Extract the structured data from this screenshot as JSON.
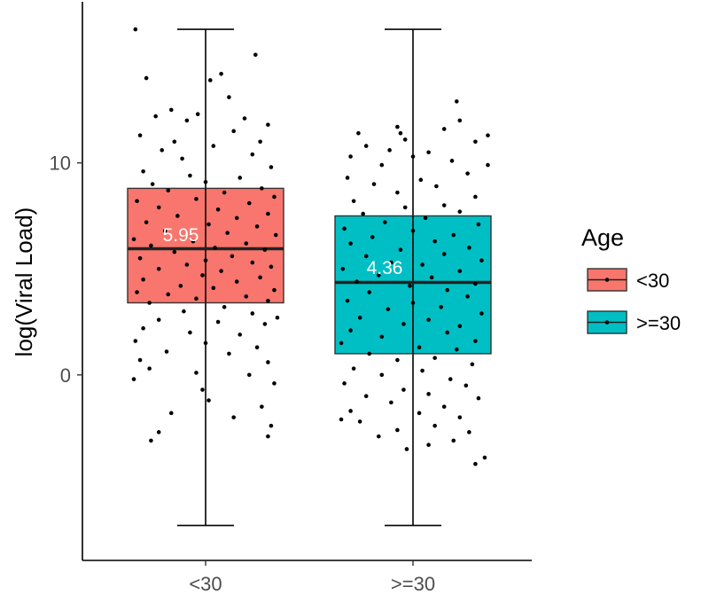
{
  "chart_data": {
    "type": "box",
    "xlabel": "",
    "ylabel": "log(Viral Load)",
    "ylim": [
      -8.75,
      17.6
    ],
    "yticks": [
      0,
      10
    ],
    "categories": [
      "<30",
      ">=30"
    ],
    "boxes": [
      {
        "category": "<30",
        "whisker_low": -7.1,
        "q1": 3.4,
        "median": 5.95,
        "q3": 8.8,
        "whisker_high": 16.3,
        "color": "#f8766d",
        "median_label": "5.95",
        "points": [
          [
            -0.45,
            16.3
          ],
          [
            -0.38,
            14.0
          ],
          [
            0.1,
            14.2
          ],
          [
            0.03,
            13.9
          ],
          [
            0.32,
            15.1
          ],
          [
            -0.22,
            12.5
          ],
          [
            -0.12,
            12.0
          ],
          [
            0.15,
            13.1
          ],
          [
            -0.32,
            12.2
          ],
          [
            -0.05,
            12.3
          ],
          [
            0.25,
            12.1
          ],
          [
            0.4,
            11.8
          ],
          [
            -0.42,
            11.3
          ],
          [
            -0.2,
            11.0
          ],
          [
            0.18,
            11.5
          ],
          [
            0.35,
            11.0
          ],
          [
            -0.28,
            10.6
          ],
          [
            0.05,
            10.8
          ],
          [
            0.3,
            10.4
          ],
          [
            -0.15,
            10.2
          ],
          [
            0.42,
            9.8
          ],
          [
            -0.4,
            9.6
          ],
          [
            -0.1,
            9.4
          ],
          [
            0.22,
            9.3
          ],
          [
            -0.34,
            9.0
          ],
          [
            0.0,
            9.1
          ],
          [
            0.36,
            8.8
          ],
          [
            -0.24,
            8.7
          ],
          [
            0.12,
            8.6
          ],
          [
            0.44,
            8.4
          ],
          [
            -0.44,
            8.2
          ],
          [
            -0.06,
            8.3
          ],
          [
            0.28,
            8.1
          ],
          [
            -0.3,
            7.9
          ],
          [
            0.08,
            7.8
          ],
          [
            0.4,
            7.6
          ],
          [
            -0.18,
            7.5
          ],
          [
            0.2,
            7.4
          ],
          [
            -0.38,
            7.2
          ],
          [
            0.02,
            7.1
          ],
          [
            0.33,
            7.0
          ],
          [
            -0.26,
            6.8
          ],
          [
            0.14,
            6.7
          ],
          [
            0.45,
            6.6
          ],
          [
            -0.46,
            6.4
          ],
          [
            -0.08,
            6.3
          ],
          [
            0.26,
            6.2
          ],
          [
            -0.35,
            6.1
          ],
          [
            0.06,
            6.0
          ],
          [
            0.38,
            5.9
          ],
          [
            -0.2,
            5.8
          ],
          [
            0.17,
            5.6
          ],
          [
            -0.42,
            5.5
          ],
          [
            0.0,
            5.4
          ],
          [
            0.3,
            5.3
          ],
          [
            -0.12,
            5.2
          ],
          [
            0.42,
            5.1
          ],
          [
            -0.3,
            5.0
          ],
          [
            0.1,
            4.9
          ],
          [
            -0.02,
            4.7
          ],
          [
            0.35,
            4.6
          ],
          [
            -0.4,
            4.5
          ],
          [
            0.2,
            4.4
          ],
          [
            -0.16,
            4.2
          ],
          [
            0.05,
            4.1
          ],
          [
            0.44,
            4.0
          ],
          [
            -0.44,
            3.9
          ],
          [
            -0.24,
            3.8
          ],
          [
            0.26,
            3.7
          ],
          [
            -0.06,
            3.6
          ],
          [
            0.4,
            3.5
          ],
          [
            -0.36,
            3.4
          ],
          [
            0.12,
            3.2
          ],
          [
            -0.14,
            3.0
          ],
          [
            0.3,
            2.9
          ],
          [
            0.46,
            2.7
          ],
          [
            -0.3,
            2.6
          ],
          [
            0.08,
            2.5
          ],
          [
            0.38,
            2.4
          ],
          [
            -0.4,
            2.2
          ],
          [
            -0.1,
            2.0
          ],
          [
            0.22,
            1.9
          ],
          [
            -0.45,
            1.6
          ],
          [
            0.0,
            1.5
          ],
          [
            0.33,
            1.3
          ],
          [
            -0.25,
            1.1
          ],
          [
            0.15,
            1.0
          ],
          [
            -0.42,
            0.7
          ],
          [
            0.4,
            0.6
          ],
          [
            -0.36,
            0.3
          ],
          [
            -0.06,
            0.1
          ],
          [
            0.28,
            0.0
          ],
          [
            -0.46,
            -0.2
          ],
          [
            0.44,
            -0.4
          ],
          [
            -0.02,
            -0.7
          ],
          [
            0.02,
            -1.2
          ],
          [
            0.36,
            -1.5
          ],
          [
            -0.22,
            -1.8
          ],
          [
            0.18,
            -2.0
          ],
          [
            0.42,
            -2.4
          ],
          [
            -0.3,
            -2.7
          ],
          [
            0.4,
            -2.9
          ],
          [
            -0.35,
            -3.1
          ]
        ]
      },
      {
        "category": ">=30",
        "whisker_low": -7.1,
        "q1": 1.0,
        "median": 4.36,
        "q3": 7.5,
        "whisker_high": 16.3,
        "color": "#00bfc4",
        "median_label": "4.36",
        "points": [
          [
            0.28,
            12.9
          ],
          [
            0.3,
            12.0
          ],
          [
            -0.1,
            11.7
          ],
          [
            -0.08,
            11.4
          ],
          [
            0.2,
            11.6
          ],
          [
            -0.35,
            11.4
          ],
          [
            0.48,
            11.3
          ],
          [
            -0.05,
            11.1
          ],
          [
            0.4,
            11.0
          ],
          [
            -0.3,
            10.8
          ],
          [
            -0.15,
            10.6
          ],
          [
            0.1,
            10.5
          ],
          [
            -0.4,
            10.3
          ],
          [
            0.0,
            10.3
          ],
          [
            0.25,
            10.1
          ],
          [
            -0.2,
            9.9
          ],
          [
            0.48,
            9.9
          ],
          [
            0.35,
            9.5
          ],
          [
            -0.42,
            9.3
          ],
          [
            0.05,
            9.2
          ],
          [
            -0.25,
            9.0
          ],
          [
            0.15,
            8.9
          ],
          [
            -0.1,
            8.6
          ],
          [
            0.4,
            8.4
          ],
          [
            -0.38,
            8.2
          ],
          [
            0.2,
            8.0
          ],
          [
            -0.05,
            7.9
          ],
          [
            0.3,
            7.7
          ],
          [
            -0.32,
            7.6
          ],
          [
            0.08,
            7.4
          ],
          [
            -0.18,
            7.2
          ],
          [
            0.42,
            7.1
          ],
          [
            -0.44,
            6.9
          ],
          [
            0.0,
            6.8
          ],
          [
            0.26,
            6.6
          ],
          [
            -0.26,
            6.5
          ],
          [
            0.14,
            6.3
          ],
          [
            -0.4,
            6.2
          ],
          [
            0.36,
            6.0
          ],
          [
            -0.08,
            5.9
          ],
          [
            0.2,
            5.7
          ],
          [
            -0.3,
            5.6
          ],
          [
            0.44,
            5.4
          ],
          [
            -0.14,
            5.3
          ],
          [
            0.06,
            5.2
          ],
          [
            -0.45,
            5.0
          ],
          [
            0.3,
            4.9
          ],
          [
            -0.22,
            4.7
          ],
          [
            0.12,
            4.6
          ],
          [
            -0.36,
            4.4
          ],
          [
            0.4,
            4.3
          ],
          [
            -0.02,
            4.2
          ],
          [
            0.22,
            4.0
          ],
          [
            -0.28,
            3.9
          ],
          [
            0.35,
            3.7
          ],
          [
            -0.42,
            3.5
          ],
          [
            0.0,
            3.4
          ],
          [
            0.18,
            3.2
          ],
          [
            -0.16,
            3.1
          ],
          [
            0.44,
            2.9
          ],
          [
            -0.34,
            2.7
          ],
          [
            0.1,
            2.6
          ],
          [
            -0.06,
            2.4
          ],
          [
            0.3,
            2.3
          ],
          [
            -0.4,
            2.1
          ],
          [
            0.22,
            2.0
          ],
          [
            -0.2,
            1.8
          ],
          [
            0.4,
            1.6
          ],
          [
            -0.46,
            1.5
          ],
          [
            0.04,
            1.3
          ],
          [
            0.28,
            1.2
          ],
          [
            -0.28,
            1.0
          ],
          [
            0.14,
            0.8
          ],
          [
            -0.1,
            0.7
          ],
          [
            0.38,
            0.5
          ],
          [
            -0.38,
            0.3
          ],
          [
            0.06,
            0.2
          ],
          [
            -0.2,
            0.0
          ],
          [
            0.24,
            -0.2
          ],
          [
            -0.44,
            -0.4
          ],
          [
            0.34,
            -0.5
          ],
          [
            -0.06,
            -0.7
          ],
          [
            0.1,
            -0.9
          ],
          [
            -0.3,
            -1.0
          ],
          [
            0.42,
            -1.1
          ],
          [
            -0.14,
            -1.3
          ],
          [
            0.2,
            -1.5
          ],
          [
            -0.4,
            -1.7
          ],
          [
            0.04,
            -1.8
          ],
          [
            0.3,
            -2.0
          ],
          [
            -0.46,
            -2.1
          ],
          [
            -0.34,
            -2.2
          ],
          [
            0.14,
            -2.4
          ],
          [
            -0.1,
            -2.6
          ],
          [
            0.36,
            -2.7
          ],
          [
            -0.22,
            -2.9
          ],
          [
            0.26,
            -3.1
          ],
          [
            0.1,
            -3.3
          ],
          [
            -0.04,
            -3.5
          ],
          [
            0.46,
            -3.9
          ],
          [
            0.4,
            -4.2
          ]
        ]
      }
    ],
    "legend": {
      "title": "Age",
      "position": "right",
      "entries": [
        {
          "label": "<30",
          "color": "#f8766d"
        },
        {
          "label": ">=30",
          "color": "#00bfc4"
        }
      ]
    },
    "grid": false
  }
}
